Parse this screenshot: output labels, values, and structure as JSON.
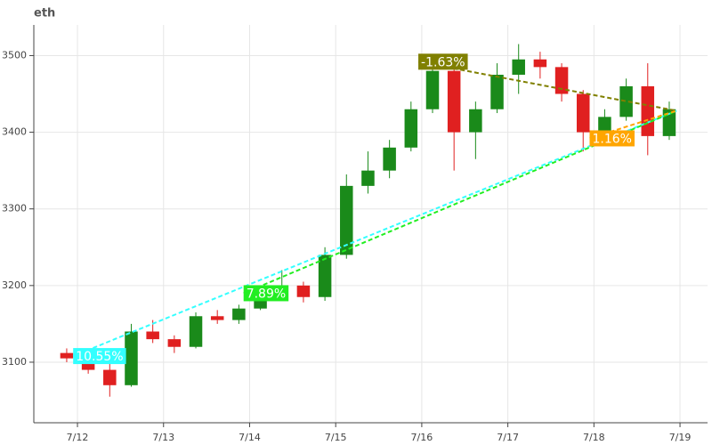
{
  "chart_data": {
    "type": "candlestick",
    "title": "eth",
    "x": [
      -0.125,
      0.125,
      0.375,
      0.625,
      0.875,
      1.125,
      1.375,
      1.625,
      1.875,
      2.125,
      2.375,
      2.625,
      2.875,
      3.125,
      3.375,
      3.625,
      3.875,
      4.125,
      4.375,
      4.625,
      4.875,
      5.125,
      5.375,
      5.625,
      5.875,
      6.125,
      6.375,
      6.625,
      6.875
    ],
    "open": [
      3112,
      3105,
      3090,
      3070,
      3140,
      3130,
      3120,
      3160,
      3155,
      3170,
      3190,
      3200,
      3185,
      3240,
      3330,
      3350,
      3380,
      3430,
      3480,
      3400,
      3430,
      3475,
      3495,
      3485,
      3450,
      3400,
      3420,
      3460,
      3395
    ],
    "high": [
      3118,
      3110,
      3098,
      3150,
      3155,
      3135,
      3165,
      3168,
      3175,
      3195,
      3220,
      3205,
      3250,
      3345,
      3375,
      3390,
      3440,
      3500,
      3485,
      3440,
      3490,
      3515,
      3505,
      3490,
      3455,
      3430,
      3470,
      3490,
      3440
    ],
    "low": [
      3100,
      3085,
      3055,
      3068,
      3125,
      3112,
      3118,
      3150,
      3150,
      3168,
      3185,
      3178,
      3180,
      3235,
      3320,
      3340,
      3375,
      3425,
      3350,
      3365,
      3425,
      3450,
      3470,
      3440,
      3375,
      3395,
      3415,
      3370,
      3390
    ],
    "close": [
      3105,
      3090,
      3070,
      3140,
      3130,
      3120,
      3160,
      3155,
      3170,
      3190,
      3200,
      3185,
      3240,
      3330,
      3350,
      3380,
      3430,
      3480,
      3400,
      3430,
      3475,
      3495,
      3485,
      3450,
      3400,
      3420,
      3460,
      3395,
      3430
    ],
    "up_color": "#1a8a1a",
    "down_color": "#e02020",
    "annotations": [
      {
        "text": "10.55%",
        "color": "#33ffff",
        "x": -0.05,
        "y": 3108
      },
      {
        "text": "7.89%",
        "color": "#22ee22",
        "x": 1.93,
        "y": 3190
      },
      {
        "text": "-1.63%",
        "color": "#808000",
        "x": 3.96,
        "y": 3492
      },
      {
        "text": "1.16%",
        "color": "#ffa500",
        "x": 5.95,
        "y": 3392
      }
    ],
    "target": {
      "x": 6.96,
      "y": 3428
    },
    "xlim": [
      -0.507,
      7.32
    ],
    "xticks": [
      {
        "value": 0,
        "label": "7/12"
      },
      {
        "value": 1,
        "label": "7/13"
      },
      {
        "value": 2,
        "label": "7/14"
      },
      {
        "value": 3,
        "label": "7/15"
      },
      {
        "value": 4,
        "label": "7/16"
      },
      {
        "value": 5,
        "label": "7/17"
      },
      {
        "value": 6,
        "label": "7/18"
      },
      {
        "value": 7,
        "label": "7/19"
      }
    ],
    "ylim": [
      3021,
      3540
    ],
    "yticks": [
      3100,
      3200,
      3300,
      3400,
      3500
    ],
    "grid": true
  }
}
